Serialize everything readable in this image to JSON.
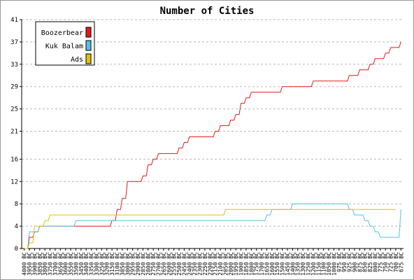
{
  "chart_data": {
    "type": "line",
    "title": "Number of Cities",
    "xlabel": "",
    "ylabel": "",
    "ylim": [
      0,
      41
    ],
    "y_ticks": [
      0,
      4,
      8,
      12,
      16,
      21,
      25,
      29,
      33,
      37,
      41
    ],
    "grid": "horizontal-dashed",
    "legend_position": "top-left",
    "x": [
      "4000 BC",
      "3950 BC",
      "3900 BC",
      "3850 BC",
      "3800 BC",
      "3750 BC",
      "3700 BC",
      "3650 BC",
      "3600 BC",
      "3550 BC",
      "3500 BC",
      "3450 BC",
      "3400 BC",
      "3350 BC",
      "3300 BC",
      "3250 BC",
      "3200 BC",
      "3150 BC",
      "3100 BC",
      "3050 BC",
      "3000 BC",
      "2950 BC",
      "2900 BC",
      "2850 BC",
      "2800 BC",
      "2750 BC",
      "2700 BC",
      "2650 BC",
      "2600 BC",
      "2550 BC",
      "2500 BC",
      "2450 BC",
      "2400 BC",
      "2350 BC",
      "2300 BC",
      "2250 BC",
      "2200 BC",
      "2150 BC",
      "2100 BC",
      "2050 BC",
      "2000 BC",
      "1950 BC",
      "1900 BC",
      "1850 BC",
      "1800 BC",
      "1750 BC",
      "1700 BC",
      "1650 BC",
      "1600 BC",
      "1550 BC",
      "1500 BC",
      "1450 BC",
      "1400 BC",
      "1350 BC",
      "1300 BC",
      "1250 BC",
      "1200 BC",
      "1150 BC",
      "1100 BC",
      "1050 BC",
      "1000 BC",
      "975 BC",
      "950 BC",
      "925 BC",
      "900 BC",
      "875 BC",
      "850 BC",
      "825 BC",
      "800 BC",
      "775 BC",
      "750 BC",
      "725 BC",
      "700 BC",
      "675 BC"
    ],
    "series": [
      {
        "name": "Boozerbear",
        "color": "#e31a1c",
        "values": [
          0,
          2,
          3,
          4,
          4,
          4,
          4,
          4,
          4,
          4,
          4,
          4,
          4,
          4,
          4,
          4,
          4,
          5,
          7,
          9,
          12,
          12,
          12,
          13,
          15,
          16,
          17,
          17,
          17,
          17,
          18,
          19,
          20,
          20,
          20,
          20,
          20,
          21,
          22,
          22,
          23,
          24,
          26,
          27,
          28,
          28,
          28,
          28,
          28,
          28,
          29,
          29,
          29,
          29,
          29,
          29,
          30,
          30,
          30,
          30,
          30,
          30,
          30,
          31,
          31,
          32,
          32,
          33,
          34,
          34,
          35,
          36,
          36,
          37
        ]
      },
      {
        "name": "Kuk Balam",
        "color": "#55bfe8",
        "values": [
          0,
          3,
          3,
          4,
          4,
          4,
          4,
          4,
          4,
          4,
          5,
          5,
          5,
          5,
          5,
          5,
          5,
          5,
          5,
          5,
          5,
          5,
          5,
          5,
          5,
          5,
          5,
          5,
          5,
          5,
          5,
          5,
          5,
          5,
          5,
          5,
          5,
          5,
          5,
          5,
          5,
          5,
          5,
          5,
          5,
          5,
          5,
          6,
          7,
          7,
          7,
          7,
          8,
          8,
          8,
          8,
          8,
          8,
          8,
          8,
          8,
          8,
          8,
          7,
          6,
          6,
          5,
          4,
          3,
          2,
          2,
          2,
          2,
          7
        ]
      },
      {
        "name": "Ads",
        "color": "#e0c000",
        "values": [
          0,
          1,
          4,
          4,
          5,
          6,
          6,
          6,
          6,
          6,
          6,
          6,
          6,
          6,
          6,
          6,
          6,
          6,
          6,
          6,
          6,
          6,
          6,
          6,
          6,
          6,
          6,
          6,
          6,
          6,
          6,
          6,
          6,
          6,
          6,
          6,
          6,
          6,
          6,
          7,
          7,
          7,
          7,
          7,
          7,
          7,
          7,
          7,
          7,
          7,
          7,
          7,
          7,
          7,
          7,
          7,
          7,
          7,
          7,
          7,
          7,
          7,
          7,
          7,
          7,
          7,
          7,
          7,
          7,
          7,
          7,
          7,
          7,
          null
        ]
      }
    ]
  }
}
